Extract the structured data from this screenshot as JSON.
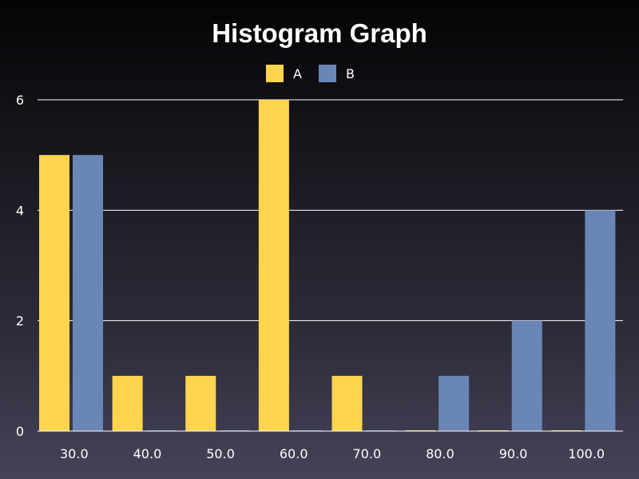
{
  "chart_data": {
    "type": "bar",
    "title": "Histogram Graph",
    "xlabel": "",
    "ylabel": "",
    "categories": [
      "30.0",
      "40.0",
      "50.0",
      "60.0",
      "70.0",
      "80.0",
      "90.0",
      "100.0"
    ],
    "series": [
      {
        "name": "A",
        "color": "#ffd54f",
        "values": [
          5,
          1,
          1,
          6,
          1,
          0,
          0,
          0
        ]
      },
      {
        "name": "B",
        "color": "#6a86b6",
        "values": [
          5,
          0,
          0,
          0,
          0,
          1,
          2,
          4
        ]
      }
    ],
    "ylim": [
      0,
      6
    ],
    "yticks": [
      "0",
      "2",
      "4",
      "6"
    ],
    "grid": true,
    "legend_position": "top-center"
  }
}
